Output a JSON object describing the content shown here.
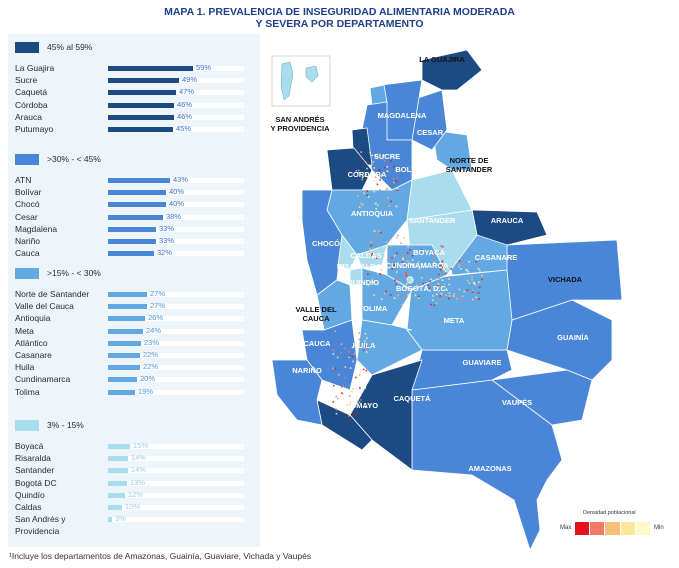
{
  "title": {
    "line1": "MAPA 1. PREVALENCIA DE INSEGURIDAD ALIMENTARIA  MODERADA",
    "line2": "Y SEVERA POR DEPARTAMENTO"
  },
  "groups": [
    {
      "label": "45% al 59%",
      "color": "#1c4a82",
      "value_color": "#3d74c8",
      "rows": [
        {
          "name": "La Guajira",
          "value": "59%",
          "pct": 59
        },
        {
          "name": "Sucre",
          "value": "49%",
          "pct": 49
        },
        {
          "name": "Caquetá",
          "value": "47%",
          "pct": 47
        },
        {
          "name": "Córdoba",
          "value": "46%",
          "pct": 46
        },
        {
          "name": "Arauca",
          "value": "46%",
          "pct": 46
        },
        {
          "name": "Putumayo",
          "value": "45%",
          "pct": 45
        }
      ]
    },
    {
      "label": ">30% - < 45%",
      "color": "#4a86d8",
      "value_color": "#3d74c8",
      "rows": [
        {
          "name": "ATN",
          "value": "43%",
          "pct": 43
        },
        {
          "name": "Bolívar",
          "value": "40%",
          "pct": 40
        },
        {
          "name": "Chocó",
          "value": "40%",
          "pct": 40
        },
        {
          "name": "Cesar",
          "value": "38%",
          "pct": 38
        },
        {
          "name": "Magdalena",
          "value": "33%",
          "pct": 33
        },
        {
          "name": "Nariño",
          "value": "33%",
          "pct": 33
        },
        {
          "name": "Cauca",
          "value": "32%",
          "pct": 32
        }
      ]
    },
    {
      "label": ">15% - < 30%",
      "color": "#62a9e4",
      "value_color": "#4f9ad8",
      "rows": [
        {
          "name": "Norte de Santander",
          "value": "27%",
          "pct": 27
        },
        {
          "name": "Valle del Cauca",
          "value": "27%",
          "pct": 27
        },
        {
          "name": "Antioquia",
          "value": "26%",
          "pct": 26
        },
        {
          "name": "Meta",
          "value": "24%",
          "pct": 24
        },
        {
          "name": "Atlántico",
          "value": "23%",
          "pct": 23
        },
        {
          "name": "Casanare",
          "value": "22%",
          "pct": 22
        },
        {
          "name": "Huila",
          "value": "22%",
          "pct": 22
        },
        {
          "name": "Cundinamarca",
          "value": "20%",
          "pct": 20
        },
        {
          "name": "Tolima",
          "value": "19%",
          "pct": 19
        }
      ]
    },
    {
      "label": "3% - 15%",
      "color": "#a9dcec",
      "value_color": "#9ccfe0",
      "rows": [
        {
          "name": "Boyacá",
          "value": "15%",
          "pct": 15
        },
        {
          "name": "Risaralda",
          "value": "14%",
          "pct": 14
        },
        {
          "name": "Santander",
          "value": "14%",
          "pct": 14
        },
        {
          "name": "Bogotá DC",
          "value": "13%",
          "pct": 13
        },
        {
          "name": "Quindío",
          "value": "12%",
          "pct": 12
        },
        {
          "name": "Caldas",
          "value": "10%",
          "pct": 10
        },
        {
          "name": "San Andrés y Providencia",
          "value": "3%",
          "pct": 3
        }
      ]
    }
  ],
  "footnote": "¹Incluye los departamentos de Amazonas, Guainía, Guaviare, Vichada y Vaupés",
  "map": {
    "labels": {
      "la_guajira": "LA GUAJIRA",
      "magdalena": "MAGDALENA",
      "cesar": "CESAR",
      "sucre": "SUCRE",
      "bolivar": "BOLÍVAR",
      "norte_de_santander": "NORTE DE SANTANDER",
      "cordoba": "CÓRDOBA",
      "antioquia": "ANTIOQUIA",
      "santander": "SANTANDER",
      "arauca": "ARAUCA",
      "choco": "CHOCÓ",
      "boyaca": "BOYACÁ",
      "caldas": "CALDAS",
      "risaralda": "RISARALDA",
      "cundinamarca": "CUNDINAMARCA",
      "casanare": "CASANARE",
      "quindio": "QUINDÍO",
      "bogota": "BOGOTÁ, D.C.",
      "vichada": "VICHADA",
      "tolima": "TOLIMA",
      "valle": "VALLE DEL CAUCA",
      "meta": "META",
      "guainia": "GUAINÍA",
      "cauca": "CAUCA",
      "huila": "HUILA",
      "guaviare": "GUAVIARE",
      "narino": "NARIÑO",
      "caqueta": "CAQUETÁ",
      "vaupes": "VAUPÉS",
      "putumayo": "PUTUMAYO",
      "amazonas": "AMAZONAS",
      "san_andres": "SAN ANDRÉS Y PROVIDENCIA"
    },
    "colors": {
      "dark": "#1c4a82",
      "mid": "#4a86d8",
      "light": "#62a9e4",
      "pale": "#a9dcec"
    }
  },
  "density_legend": {
    "title": "Densidad poblacional",
    "max": "Max",
    "min": "Min",
    "colors": [
      "#e4121a",
      "#f07a6a",
      "#f7c07a",
      "#fbe79a",
      "#fff9c8"
    ]
  }
}
